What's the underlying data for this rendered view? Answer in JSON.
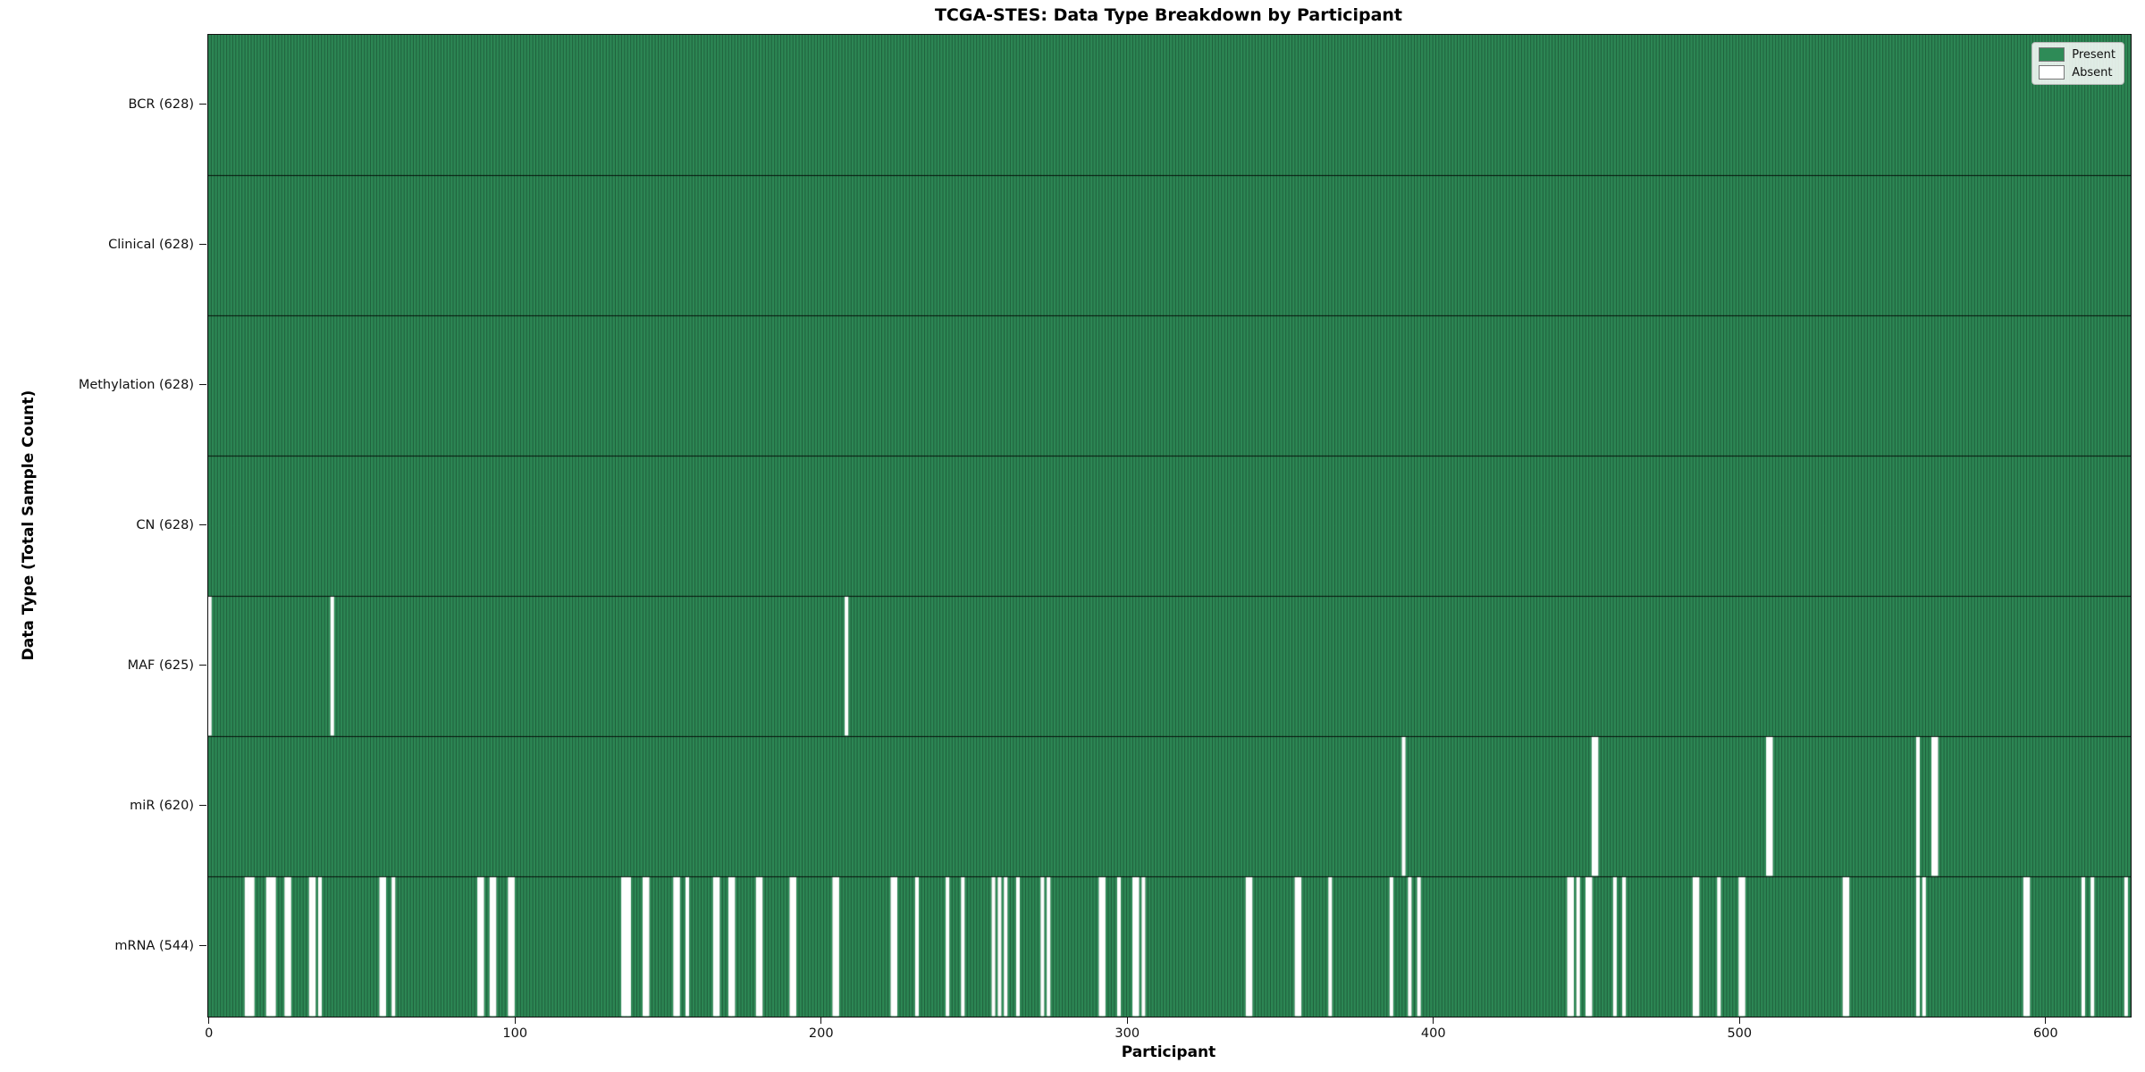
{
  "chart_data": {
    "type": "heatmap",
    "title": "TCGA-STES: Data Type Breakdown by Participant",
    "xlabel": "Participant",
    "ylabel": "Data Type (Total Sample Count)",
    "x_ticks": [
      0,
      100,
      200,
      300,
      400,
      500,
      600
    ],
    "n_participants": 628,
    "x_range": [
      0,
      628
    ],
    "grid": false,
    "legend": {
      "position": "upper-right",
      "items": [
        {
          "label": "Present",
          "color": "#2e8b57"
        },
        {
          "label": "Absent",
          "color": "#ffffff"
        }
      ]
    },
    "colors": {
      "present": "#2e8b57",
      "absent": "#ffffff",
      "bar_edge": "rgba(0,0,0,0.55)",
      "row_divider": "rgba(0,0,0,0.85)",
      "axis": "#111111"
    },
    "rows": [
      {
        "label": "BCR (628)",
        "data_type": "BCR",
        "present_count": 628,
        "absent_participants": []
      },
      {
        "label": "Clinical (628)",
        "data_type": "Clinical",
        "present_count": 628,
        "absent_participants": []
      },
      {
        "label": "Methylation (628)",
        "data_type": "Methylation",
        "present_count": 628,
        "absent_participants": []
      },
      {
        "label": "CN (628)",
        "data_type": "CN",
        "present_count": 628,
        "absent_participants": []
      },
      {
        "label": "MAF (625)",
        "data_type": "MAF",
        "present_count": 625,
        "absent_participants": [
          0,
          40,
          208
        ]
      },
      {
        "label": "miR (620)",
        "data_type": "miR",
        "present_count": 620,
        "absent_participants": [
          390,
          452,
          453,
          509,
          510,
          558,
          563,
          564
        ]
      },
      {
        "label": "mRNA (544)",
        "data_type": "mRNA",
        "present_count": 544,
        "absent_participants": [
          12,
          13,
          14,
          19,
          20,
          21,
          25,
          26,
          33,
          34,
          36,
          56,
          57,
          60,
          88,
          89,
          92,
          93,
          98,
          99,
          135,
          136,
          137,
          142,
          143,
          152,
          153,
          156,
          165,
          166,
          170,
          171,
          179,
          180,
          190,
          191,
          204,
          205,
          223,
          224,
          231,
          241,
          246,
          256,
          258,
          260,
          264,
          272,
          274,
          291,
          292,
          297,
          302,
          303,
          305,
          339,
          340,
          355,
          356,
          366,
          386,
          392,
          395,
          444,
          445,
          447,
          450,
          451,
          459,
          462,
          485,
          486,
          493,
          500,
          501,
          534,
          535,
          558,
          560,
          593,
          594,
          612,
          615,
          626
        ]
      }
    ]
  }
}
